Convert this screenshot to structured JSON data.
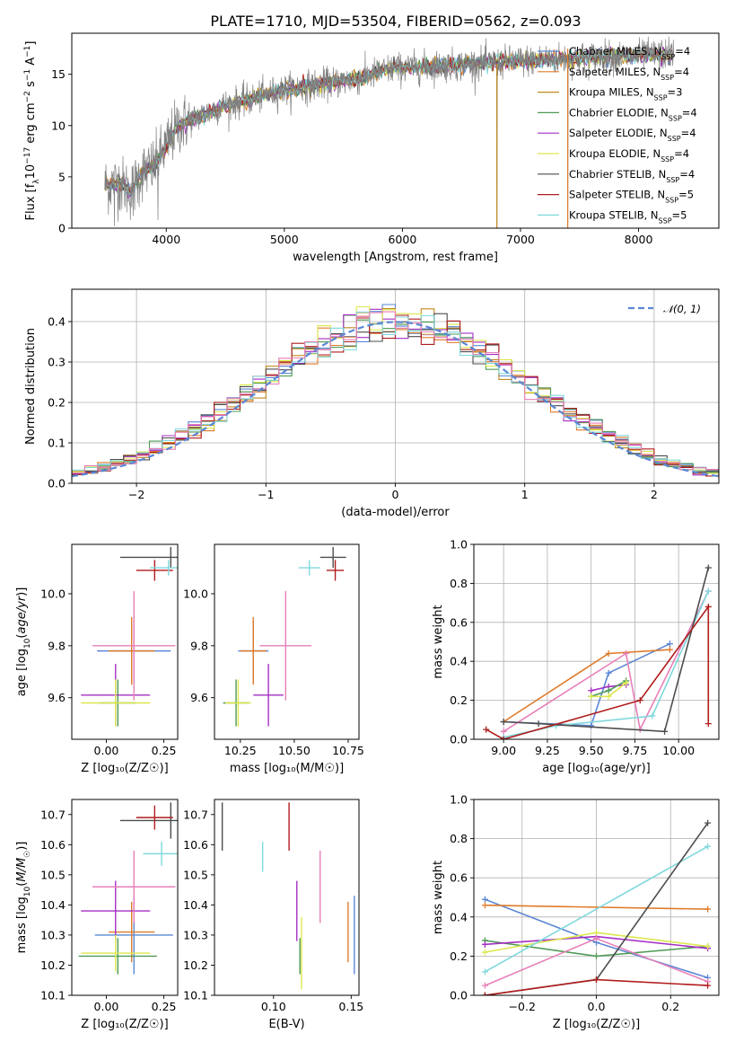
{
  "title": "PLATE=1710, MJD=53504, FIBERID=0562, z=0.093",
  "colors": {
    "Chabrier MILES": "#5b87d4",
    "Salpeter MILES": "#e07b2a",
    "Kroupa MILES": "#c0891f",
    "Chabrier ELODIE": "#4f9a55",
    "Salpeter ELODIE": "#a52fc4",
    "Kroupa ELODIE": "#dce84d",
    "Chabrier STELIB": "#4d4d4d",
    "Salpeter STELIB": "#b01c1c",
    "Kroupa STELIB": "#7fd8dc",
    "Pink": "#e77fb8",
    "Spectrum": "#808080"
  },
  "legend": [
    {
      "label": "Chabrier MILES, N",
      "sub": "SSP",
      "suffix": "=4",
      "color": "#5b87d4"
    },
    {
      "label": "Salpeter MILES, N",
      "sub": "SSP",
      "suffix": "=4",
      "color": "#e07b2a"
    },
    {
      "label": "Kroupa MILES, N",
      "sub": "SSP",
      "suffix": "=3",
      "color": "#c0891f"
    },
    {
      "label": "Chabrier ELODIE, N",
      "sub": "SSP",
      "suffix": "=4",
      "color": "#4f9a55"
    },
    {
      "label": "Salpeter ELODIE, N",
      "sub": "SSP",
      "suffix": "=4",
      "color": "#a52fc4"
    },
    {
      "label": "Kroupa ELODIE, N",
      "sub": "SSP",
      "suffix": "=4",
      "color": "#dce84d"
    },
    {
      "label": "Chabrier STELIB, N",
      "sub": "SSP",
      "suffix": "=4",
      "color": "#4d4d4d"
    },
    {
      "label": "Salpeter STELIB, N",
      "sub": "SSP",
      "suffix": "=5",
      "color": "#b01c1c"
    },
    {
      "label": "Kroupa STELIB, N",
      "sub": "SSP",
      "suffix": "=5",
      "color": "#7fd8dc"
    }
  ],
  "chart_data": [
    {
      "id": "spectrum",
      "type": "line",
      "xlabel": "wavelength [Angstrom, rest frame]",
      "ylabel": "Flux [f_λ 10^-17 erg cm^-2 s^-1 A^-1]",
      "xlim": [
        3200,
        8680
      ],
      "ylim": [
        0,
        19
      ],
      "xticks": [
        4000,
        5000,
        6000,
        7000,
        8000
      ],
      "yticks": [
        0,
        5,
        10,
        15
      ],
      "continuum": [
        [
          3480,
          4.2
        ],
        [
          3600,
          4.4
        ],
        [
          3700,
          3.6
        ],
        [
          3800,
          5.5
        ],
        [
          3900,
          6.0
        ],
        [
          4000,
          8.0
        ],
        [
          4100,
          10.0
        ],
        [
          4200,
          10.5
        ],
        [
          4300,
          11.0
        ],
        [
          4500,
          12.0
        ],
        [
          4700,
          12.5
        ],
        [
          5000,
          13.5
        ],
        [
          5300,
          14.0
        ],
        [
          5600,
          14.5
        ],
        [
          5900,
          15.5
        ],
        [
          6300,
          15.8
        ],
        [
          6600,
          16.0
        ],
        [
          7000,
          16.3
        ],
        [
          7500,
          16.6
        ],
        [
          8000,
          16.8
        ],
        [
          8300,
          17.0
        ]
      ],
      "spikes": [
        {
          "x": 3560,
          "y": 0.2
        },
        {
          "x": 3720,
          "y": 1.2
        },
        {
          "x": 3930,
          "y": 0.8
        },
        {
          "x": 6800,
          "y": 0
        },
        {
          "x": 7400,
          "y": 0
        }
      ]
    },
    {
      "id": "residuals",
      "type": "histogram",
      "xlabel": "(data-model)/error",
      "ylabel": "Normed distribution",
      "xlim": [
        -2.5,
        2.5
      ],
      "ylim": [
        0,
        0.48
      ],
      "xticks": [
        -2,
        -1,
        0,
        1,
        2
      ],
      "yticks": [
        0.0,
        0.1,
        0.2,
        0.3,
        0.4
      ],
      "legend": "𝒩(0, 1)",
      "bin_width": 0.1,
      "grid": true
    },
    {
      "id": "age_vs_Z",
      "type": "errorbar",
      "xlabel": "Z [log₁₀(Z/Z☉)]",
      "ylabel": "age  [log₁₀(age/yr)]",
      "xlim": [
        -0.15,
        0.31
      ],
      "ylim": [
        9.44,
        10.19
      ],
      "xticks": [
        0.0,
        0.25
      ],
      "yticks": [
        9.6,
        9.8,
        10.0
      ],
      "points": [
        {
          "x": 0.12,
          "xerr": 0.16,
          "y": 9.78,
          "yerr": 0.12,
          "color": "#5b87d4"
        },
        {
          "x": 0.11,
          "xerr": 0.1,
          "y": 9.78,
          "yerr": 0.13,
          "color": "#e07b2a"
        },
        {
          "x": 0.05,
          "xerr": 0.08,
          "y": 9.58,
          "yerr": 0.09,
          "color": "#4f9a55"
        },
        {
          "x": 0.04,
          "xerr": 0.15,
          "y": 9.61,
          "yerr": 0.12,
          "color": "#a52fc4"
        },
        {
          "x": 0.04,
          "xerr": 0.15,
          "y": 9.58,
          "yerr": 0.09,
          "color": "#dce84d"
        },
        {
          "x": 0.12,
          "xerr": 0.18,
          "y": 9.8,
          "yerr": 0.21,
          "color": "#e77fb8"
        },
        {
          "x": 0.28,
          "xerr": 0.22,
          "y": 10.14,
          "yerr": 0.04,
          "color": "#4d4d4d"
        },
        {
          "x": 0.21,
          "xerr": 0.08,
          "y": 10.09,
          "yerr": 0.04,
          "color": "#b01c1c"
        },
        {
          "x": 0.27,
          "xerr": 0.08,
          "y": 10.1,
          "yerr": 0.03,
          "color": "#7fd8dc"
        }
      ]
    },
    {
      "id": "age_vs_mass",
      "type": "errorbar",
      "xlabel": "mass [log₁₀(M/M☉)]",
      "ylabel": "",
      "xlim": [
        10.13,
        10.8
      ],
      "ylim": [
        9.44,
        10.19
      ],
      "xticks": [
        10.25,
        10.5,
        10.75
      ],
      "yticks": [
        9.6,
        9.8,
        10.0
      ],
      "points": [
        {
          "x": 10.31,
          "xerr": 0.07,
          "y": 9.78,
          "yerr": 0.12,
          "color": "#5b87d4"
        },
        {
          "x": 10.31,
          "xerr": 0.06,
          "y": 9.78,
          "yerr": 0.13,
          "color": "#e07b2a"
        },
        {
          "x": 10.23,
          "xerr": 0.06,
          "y": 9.58,
          "yerr": 0.09,
          "color": "#4f9a55"
        },
        {
          "x": 10.38,
          "xerr": 0.07,
          "y": 9.61,
          "yerr": 0.12,
          "color": "#a52fc4"
        },
        {
          "x": 10.24,
          "xerr": 0.06,
          "y": 9.58,
          "yerr": 0.09,
          "color": "#dce84d"
        },
        {
          "x": 10.46,
          "xerr": 0.12,
          "y": 9.8,
          "yerr": 0.21,
          "color": "#e77fb8"
        },
        {
          "x": 10.68,
          "xerr": 0.06,
          "y": 10.14,
          "yerr": 0.04,
          "color": "#4d4d4d"
        },
        {
          "x": 10.69,
          "xerr": 0.04,
          "y": 10.09,
          "yerr": 0.04,
          "color": "#b01c1c"
        },
        {
          "x": 10.57,
          "xerr": 0.05,
          "y": 10.1,
          "yerr": 0.03,
          "color": "#7fd8dc"
        }
      ]
    },
    {
      "id": "weight_vs_age",
      "type": "line",
      "xlabel": "age  [log₁₀(age/yr)]",
      "ylabel": "mass weight",
      "xlim": [
        8.83,
        10.23
      ],
      "ylim": [
        0,
        1.0
      ],
      "xticks": [
        9.0,
        9.25,
        9.5,
        9.75,
        10.0
      ],
      "yticks": [
        0.0,
        0.2,
        0.4,
        0.6,
        0.8,
        1.0
      ],
      "grid": true,
      "series": [
        {
          "color": "#5b87d4",
          "x": [
            9.0,
            9.5,
            9.6,
            9.95
          ],
          "y": [
            0.09,
            0.07,
            0.34,
            0.49
          ]
        },
        {
          "color": "#e07b2a",
          "x": [
            9.0,
            9.6,
            9.95
          ],
          "y": [
            0.09,
            0.44,
            0.46
          ]
        },
        {
          "color": "#a52fc4",
          "x": [
            9.5,
            9.6,
            9.7
          ],
          "y": [
            0.25,
            0.27,
            0.28
          ]
        },
        {
          "color": "#4f9a55",
          "x": [
            9.5,
            9.6,
            9.7
          ],
          "y": [
            0.22,
            0.25,
            0.3
          ]
        },
        {
          "color": "#dce84d",
          "x": [
            9.5,
            9.6,
            9.7
          ],
          "y": [
            0.22,
            0.22,
            0.29
          ]
        },
        {
          "color": "#e77fb8",
          "x": [
            9.0,
            9.7,
            9.78,
            10.17
          ],
          "y": [
            0.04,
            0.44,
            0.05,
            0.76
          ]
        },
        {
          "color": "#7fd8dc",
          "x": [
            9.0,
            9.3,
            9.85,
            10.17
          ],
          "y": [
            0.01,
            0.07,
            0.12,
            0.76
          ]
        },
        {
          "color": "#4d4d4d",
          "x": [
            9.0,
            9.2,
            9.92,
            10.17
          ],
          "y": [
            0.09,
            0.08,
            0.04,
            0.88
          ]
        },
        {
          "color": "#b01c1c",
          "x": [
            8.9,
            9.0,
            9.78,
            10.17,
            10.17
          ],
          "y": [
            0.05,
            0.0,
            0.2,
            0.68,
            0.08
          ]
        }
      ]
    },
    {
      "id": "mass_vs_Z",
      "type": "errorbar",
      "xlabel": "Z [log₁₀(Z/Z☉)]",
      "ylabel": "mass [log₁₀(M/M☉)]",
      "xlim": [
        -0.15,
        0.31
      ],
      "ylim": [
        10.1,
        10.75
      ],
      "xticks": [
        0.0,
        0.25
      ],
      "yticks": [
        10.1,
        10.2,
        10.3,
        10.4,
        10.5,
        10.6,
        10.7
      ],
      "points": [
        {
          "x": 0.12,
          "xerr": 0.17,
          "y": 10.3,
          "yerr": 0.13,
          "color": "#5b87d4"
        },
        {
          "x": 0.11,
          "xerr": 0.1,
          "y": 10.31,
          "yerr": 0.1,
          "color": "#e07b2a"
        },
        {
          "x": 0.05,
          "xerr": 0.17,
          "y": 10.23,
          "yerr": 0.06,
          "color": "#4f9a55"
        },
        {
          "x": 0.04,
          "xerr": 0.15,
          "y": 10.38,
          "yerr": 0.1,
          "color": "#a52fc4"
        },
        {
          "x": 0.04,
          "xerr": 0.15,
          "y": 10.24,
          "yerr": 0.06,
          "color": "#dce84d"
        },
        {
          "x": 0.12,
          "xerr": 0.18,
          "y": 10.46,
          "yerr": 0.12,
          "color": "#e77fb8"
        },
        {
          "x": 0.28,
          "xerr": 0.22,
          "y": 10.68,
          "yerr": 0.06,
          "color": "#4d4d4d"
        },
        {
          "x": 0.21,
          "xerr": 0.08,
          "y": 10.69,
          "yerr": 0.04,
          "color": "#b01c1c"
        },
        {
          "x": 0.24,
          "xerr": 0.08,
          "y": 10.57,
          "yerr": 0.04,
          "color": "#7fd8dc"
        }
      ]
    },
    {
      "id": "mass_vs_ebv",
      "type": "errorbar",
      "xlabel": "E(B-V)",
      "ylabel": "",
      "xlim": [
        0.062,
        0.155
      ],
      "ylim": [
        10.1,
        10.75
      ],
      "xticks": [
        0.1,
        0.15
      ],
      "yticks": [
        10.1,
        10.2,
        10.3,
        10.4,
        10.5,
        10.6,
        10.7
      ],
      "points": [
        {
          "x": 0.152,
          "xerr": 0,
          "y": 10.3,
          "yerr": 0.13,
          "color": "#5b87d4"
        },
        {
          "x": 0.148,
          "xerr": 0,
          "y": 10.31,
          "yerr": 0.1,
          "color": "#e07b2a"
        },
        {
          "x": 0.117,
          "xerr": 0,
          "y": 10.23,
          "yerr": 0.06,
          "color": "#4f9a55"
        },
        {
          "x": 0.115,
          "xerr": 0,
          "y": 10.38,
          "yerr": 0.1,
          "color": "#a52fc4"
        },
        {
          "x": 0.118,
          "xerr": 0,
          "y": 10.24,
          "yerr": 0.12,
          "color": "#dce84d"
        },
        {
          "x": 0.13,
          "xerr": 0,
          "y": 10.46,
          "yerr": 0.12,
          "color": "#e77fb8"
        },
        {
          "x": 0.067,
          "xerr": 0,
          "y": 10.66,
          "yerr": 0.08,
          "color": "#4d4d4d"
        },
        {
          "x": 0.11,
          "xerr": 0,
          "y": 10.66,
          "yerr": 0.08,
          "color": "#b01c1c"
        },
        {
          "x": 0.093,
          "xerr": 0,
          "y": 10.56,
          "yerr": 0.05,
          "color": "#7fd8dc"
        }
      ]
    },
    {
      "id": "weight_vs_Z",
      "type": "line",
      "xlabel": "Z [log₁₀(Z/Z☉)]",
      "ylabel": "mass weight",
      "xlim": [
        -0.33,
        0.33
      ],
      "ylim": [
        0,
        1.0
      ],
      "xticks": [
        -0.2,
        0.0,
        0.2
      ],
      "yticks": [
        0.0,
        0.2,
        0.4,
        0.6,
        0.8,
        1.0
      ],
      "grid": true,
      "series": [
        {
          "color": "#5b87d4",
          "x": [
            -0.3,
            0.0,
            0.3
          ],
          "y": [
            0.49,
            0.27,
            0.09
          ]
        },
        {
          "color": "#e07b2a",
          "x": [
            -0.3,
            0.3
          ],
          "y": [
            0.46,
            0.44
          ]
        },
        {
          "color": "#4f9a55",
          "x": [
            -0.3,
            0.0,
            0.3
          ],
          "y": [
            0.28,
            0.2,
            0.25
          ]
        },
        {
          "color": "#a52fc4",
          "x": [
            -0.3,
            0.0,
            0.3
          ],
          "y": [
            0.26,
            0.3,
            0.24
          ]
        },
        {
          "color": "#dce84d",
          "x": [
            -0.3,
            0.0,
            0.3
          ],
          "y": [
            0.22,
            0.32,
            0.25
          ]
        },
        {
          "color": "#e77fb8",
          "x": [
            -0.3,
            0.0,
            0.3
          ],
          "y": [
            0.05,
            0.29,
            0.07
          ]
        },
        {
          "color": "#7fd8dc",
          "x": [
            -0.3,
            0.3
          ],
          "y": [
            0.12,
            0.76
          ]
        },
        {
          "color": "#4d4d4d",
          "x": [
            -0.3,
            0.0,
            0.3
          ],
          "y": [
            0.0,
            0.08,
            0.88
          ]
        },
        {
          "color": "#b01c1c",
          "x": [
            -0.3,
            0.0,
            0.3
          ],
          "y": [
            0.0,
            0.08,
            0.05
          ]
        }
      ]
    }
  ]
}
